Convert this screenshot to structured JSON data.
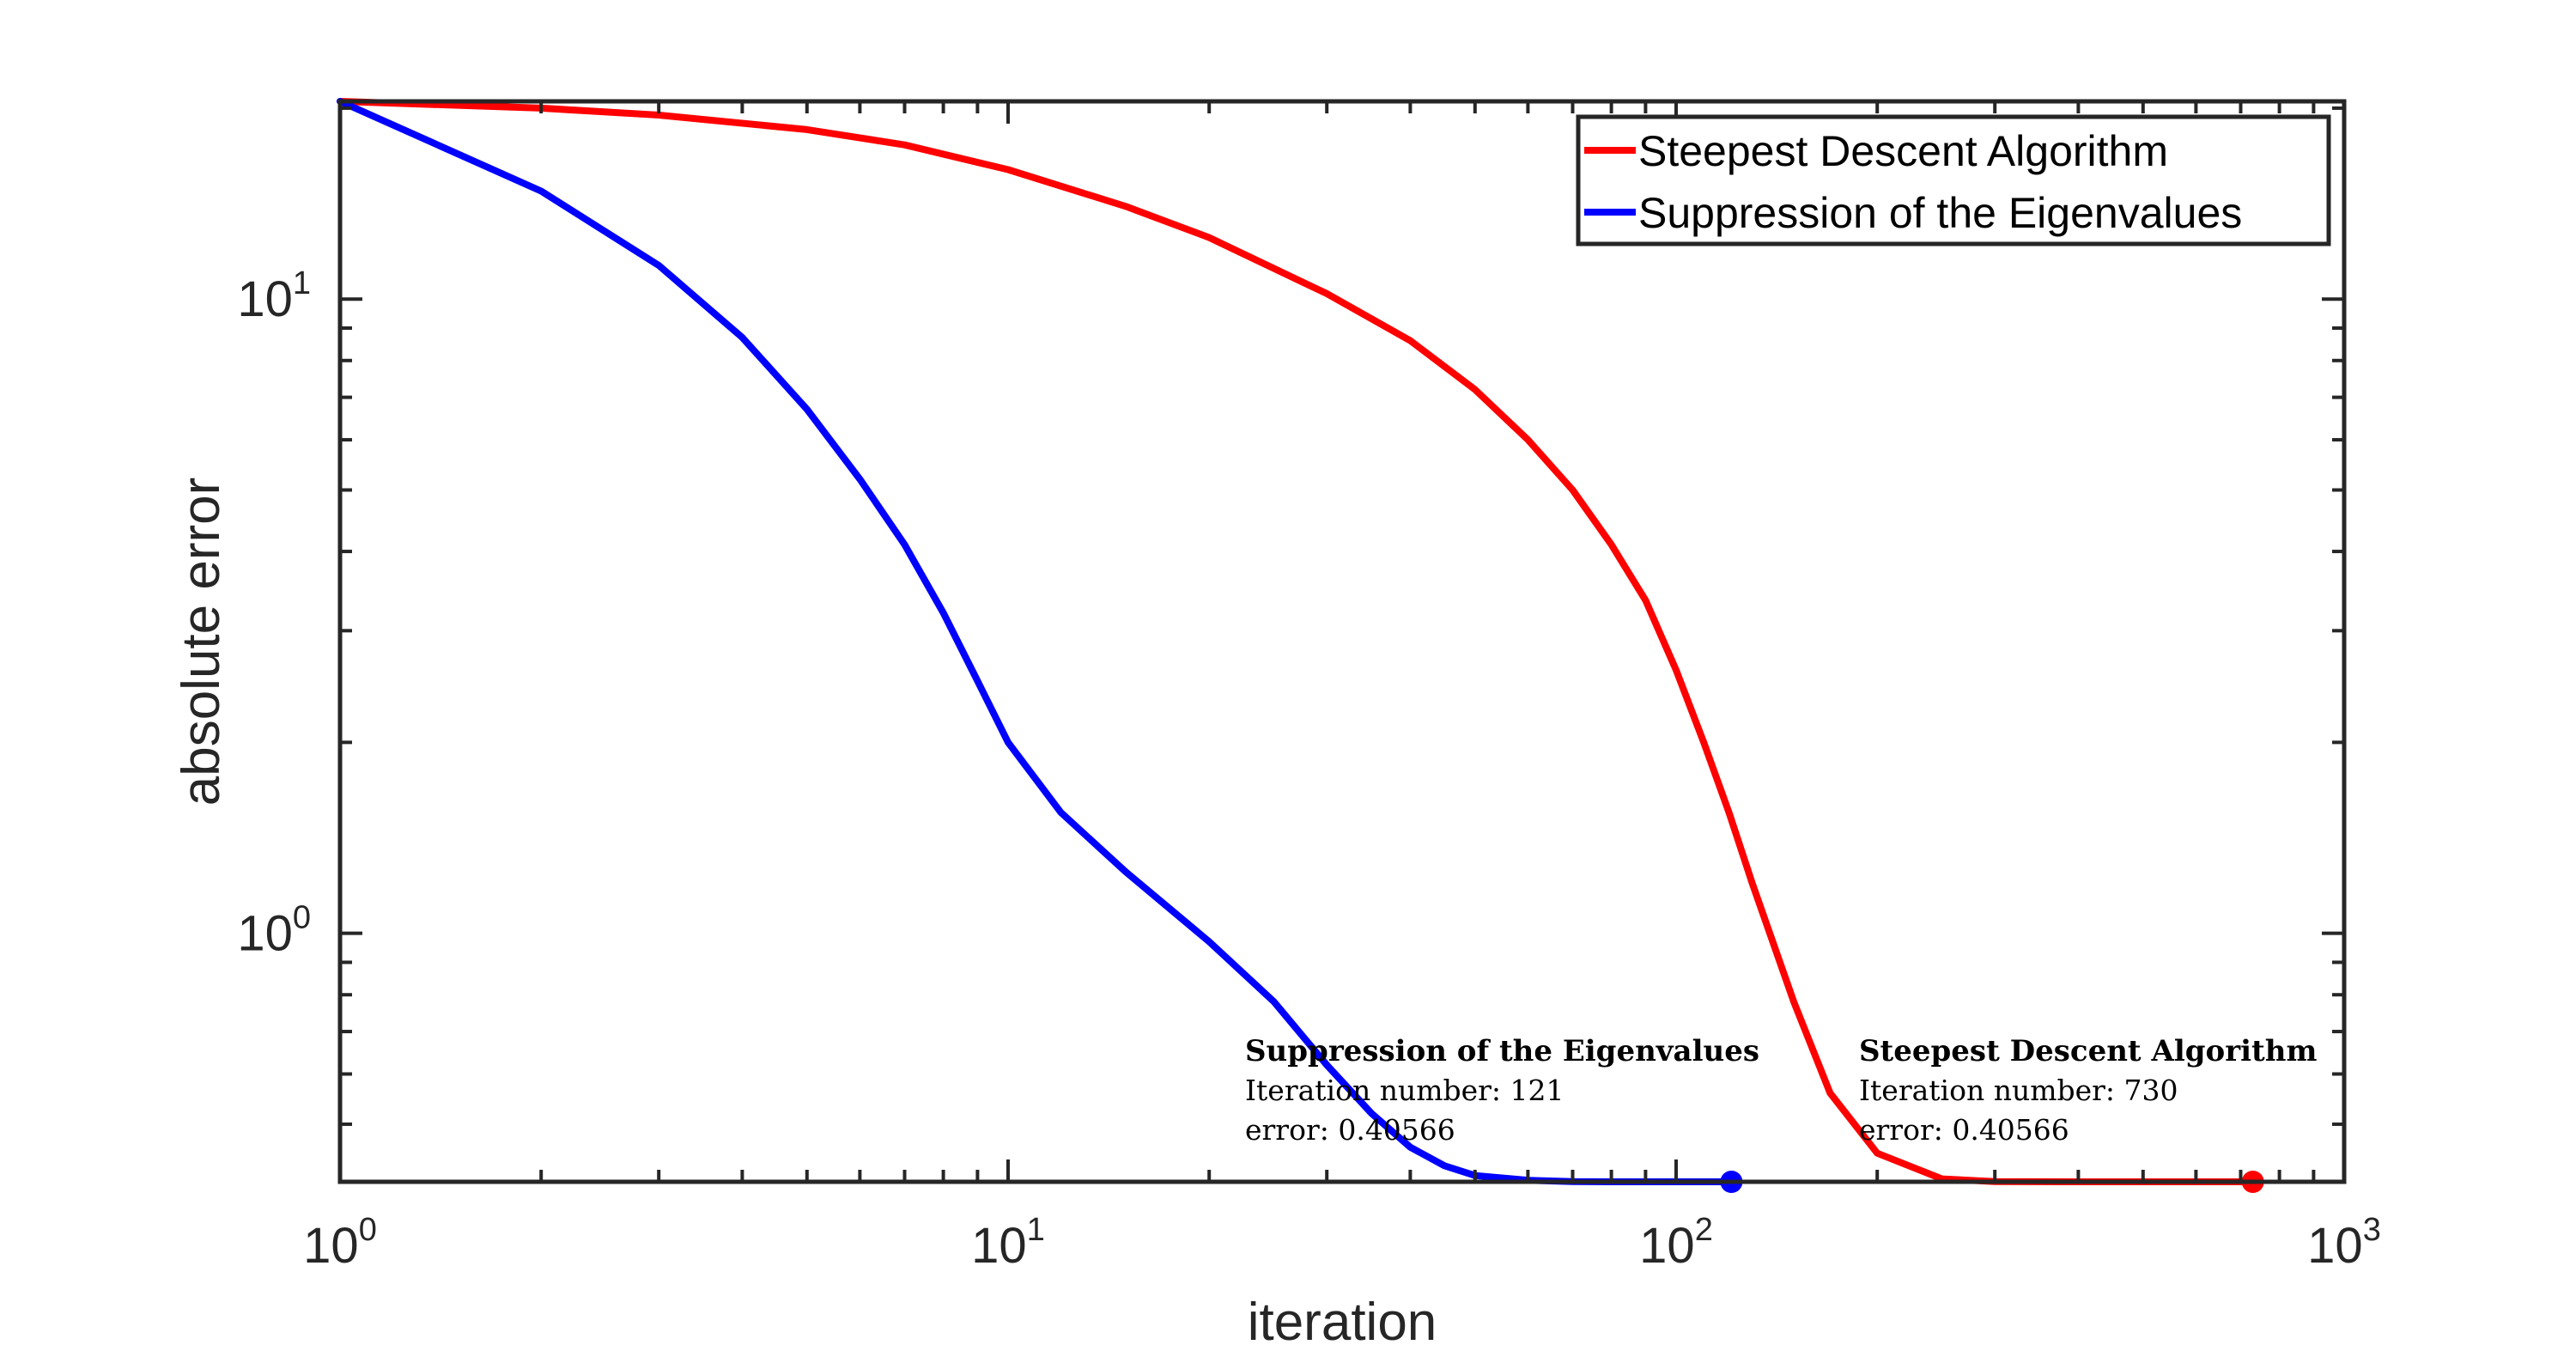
{
  "chart_data": {
    "type": "line",
    "xlabel": "iteration",
    "ylabel": "absolute error",
    "x_scale": "log",
    "y_scale": "log",
    "xlim": [
      1,
      1000
    ],
    "ylim": [
      0.40566,
      20.5
    ],
    "x_ticks": [
      {
        "base": "10",
        "exp": "0"
      },
      {
        "base": "10",
        "exp": "1"
      },
      {
        "base": "10",
        "exp": "2"
      },
      {
        "base": "10",
        "exp": "3"
      }
    ],
    "y_ticks": [
      {
        "base": "10",
        "exp": "0"
      },
      {
        "base": "10",
        "exp": "1"
      }
    ],
    "grid": false,
    "legend_position": "top-right",
    "series": [
      {
        "name": "Steepest Descent Algorithm",
        "color": "#ff0000",
        "x": [
          1,
          2,
          3,
          5,
          7,
          10,
          15,
          20,
          30,
          40,
          50,
          60,
          70,
          80,
          90,
          100,
          110,
          120,
          130,
          150,
          170,
          200,
          250,
          300,
          400,
          500,
          600,
          730
        ],
        "y": [
          20.5,
          20.0,
          19.5,
          18.5,
          17.5,
          16.0,
          14.0,
          12.5,
          10.2,
          8.6,
          7.2,
          6.0,
          5.0,
          4.1,
          3.35,
          2.6,
          2.0,
          1.55,
          1.2,
          0.78,
          0.56,
          0.45,
          0.41,
          0.406,
          0.40566,
          0.40566,
          0.40566,
          0.40566
        ]
      },
      {
        "name": "Suppression of the Eigenvalues",
        "color": "#0000ff",
        "x": [
          1,
          2,
          3,
          4,
          5,
          6,
          7,
          8,
          9,
          10,
          12,
          15,
          20,
          25,
          30,
          35,
          40,
          45,
          50,
          60,
          70,
          80,
          100,
          121
        ],
        "y": [
          20.5,
          14.8,
          11.3,
          8.7,
          6.7,
          5.2,
          4.1,
          3.2,
          2.5,
          2.0,
          1.55,
          1.25,
          0.97,
          0.78,
          0.62,
          0.52,
          0.46,
          0.43,
          0.415,
          0.408,
          0.406,
          0.4057,
          0.40566,
          0.40566
        ]
      }
    ],
    "annotations": [
      {
        "title": "Suppression of the Eigenvalues",
        "line1": "Iteration number: 121",
        "line2": "error: 0.40566",
        "x": 121,
        "y": 0.40566,
        "color": "#0000ff"
      },
      {
        "title": "Steepest Descent Algorithm",
        "line1": "Iteration number: 730",
        "line2": "error: 0.40566",
        "x": 730,
        "y": 0.40566,
        "color": "#ff0000"
      }
    ]
  }
}
